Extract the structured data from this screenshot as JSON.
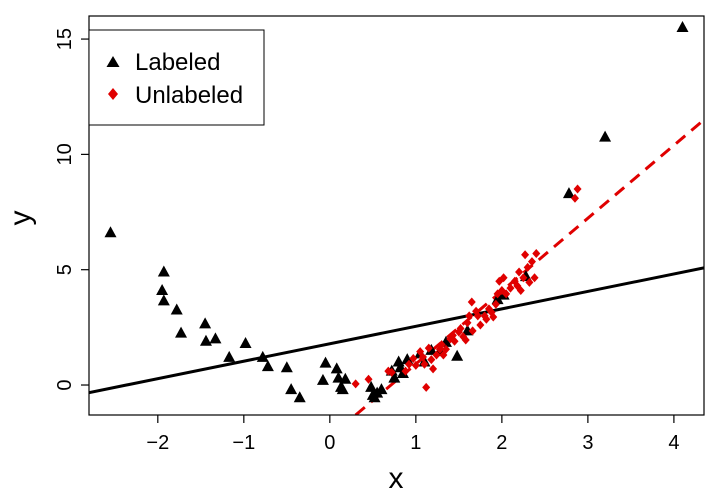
{
  "chart_data": {
    "type": "scatter",
    "title": "",
    "xlabel": "x",
    "ylabel": "y",
    "xlim": [
      -2.8,
      4.35
    ],
    "ylim": [
      -1.3,
      16.0
    ],
    "xticks": [
      -2,
      -1,
      0,
      1,
      2,
      3,
      4
    ],
    "yticks": [
      0,
      5,
      10,
      15
    ],
    "xtick_labels": [
      "−2",
      "−1",
      "0",
      "1",
      "2",
      "3",
      "4"
    ],
    "ytick_labels": [
      "0",
      "5",
      "10",
      "15"
    ],
    "grid": false,
    "legend": {
      "position": "top-left",
      "entries": [
        {
          "label": "Labeled",
          "marker": "triangle",
          "color": "#000000"
        },
        {
          "label": "Unlabeled",
          "marker": "diamond",
          "color": "#e00000"
        }
      ]
    },
    "series": [
      {
        "name": "Labeled",
        "marker": "triangle",
        "color": "#000000",
        "points": [
          [
            -2.55,
            6.6
          ],
          [
            -1.93,
            4.9
          ],
          [
            -1.95,
            4.1
          ],
          [
            -1.93,
            3.65
          ],
          [
            -1.78,
            3.25
          ],
          [
            -1.73,
            2.25
          ],
          [
            -1.45,
            2.65
          ],
          [
            -1.44,
            1.9
          ],
          [
            -1.33,
            2.0
          ],
          [
            -1.17,
            1.2
          ],
          [
            -0.98,
            1.8
          ],
          [
            -0.78,
            1.2
          ],
          [
            -0.72,
            0.8
          ],
          [
            -0.5,
            0.75
          ],
          [
            -0.45,
            -0.2
          ],
          [
            -0.35,
            -0.55
          ],
          [
            -0.08,
            0.2
          ],
          [
            -0.05,
            0.95
          ],
          [
            0.08,
            0.7
          ],
          [
            0.1,
            0.3
          ],
          [
            0.13,
            -0.1
          ],
          [
            0.15,
            -0.2
          ],
          [
            0.18,
            0.25
          ],
          [
            0.48,
            -0.1
          ],
          [
            0.5,
            -0.45
          ],
          [
            0.52,
            -0.55
          ],
          [
            0.55,
            -0.35
          ],
          [
            0.6,
            -0.2
          ],
          [
            0.72,
            0.6
          ],
          [
            0.75,
            0.3
          ],
          [
            0.8,
            1.0
          ],
          [
            0.82,
            0.75
          ],
          [
            0.85,
            0.5
          ],
          [
            0.9,
            1.1
          ],
          [
            1.05,
            1.35
          ],
          [
            1.1,
            1.0
          ],
          [
            1.18,
            1.5
          ],
          [
            1.28,
            1.45
          ],
          [
            1.35,
            1.85
          ],
          [
            1.48,
            1.25
          ],
          [
            1.6,
            2.35
          ],
          [
            1.95,
            3.7
          ],
          [
            2.02,
            3.9
          ],
          [
            2.28,
            4.7
          ],
          [
            2.78,
            8.3
          ],
          [
            3.2,
            10.75
          ],
          [
            4.1,
            15.5
          ]
        ]
      },
      {
        "name": "Unlabeled",
        "marker": "diamond",
        "color": "#e00000",
        "points": [
          [
            0.3,
            0.05
          ],
          [
            0.45,
            0.25
          ],
          [
            0.68,
            0.6
          ],
          [
            0.72,
            0.55
          ],
          [
            0.88,
            0.6
          ],
          [
            0.92,
            0.9
          ],
          [
            0.97,
            1.15
          ],
          [
            1.0,
            0.85
          ],
          [
            1.05,
            1.45
          ],
          [
            1.08,
            1.2
          ],
          [
            1.1,
            0.9
          ],
          [
            1.12,
            -0.1
          ],
          [
            1.15,
            1.6
          ],
          [
            1.18,
            1.1
          ],
          [
            1.2,
            0.7
          ],
          [
            1.24,
            1.3
          ],
          [
            1.28,
            1.55
          ],
          [
            1.3,
            1.75
          ],
          [
            1.32,
            1.3
          ],
          [
            1.35,
            1.55
          ],
          [
            1.4,
            2.0
          ],
          [
            1.43,
            2.15
          ],
          [
            1.45,
            1.9
          ],
          [
            1.5,
            2.3
          ],
          [
            1.52,
            2.45
          ],
          [
            1.55,
            2.1
          ],
          [
            1.58,
            1.95
          ],
          [
            1.6,
            2.7
          ],
          [
            1.62,
            3.0
          ],
          [
            1.65,
            3.6
          ],
          [
            1.66,
            2.35
          ],
          [
            1.7,
            3.2
          ],
          [
            1.72,
            3.0
          ],
          [
            1.75,
            2.6
          ],
          [
            1.8,
            3.0
          ],
          [
            1.82,
            2.85
          ],
          [
            1.85,
            3.3
          ],
          [
            1.88,
            3.15
          ],
          [
            1.9,
            2.95
          ],
          [
            1.93,
            3.5
          ],
          [
            1.95,
            3.95
          ],
          [
            1.97,
            4.5
          ],
          [
            2.0,
            4.1
          ],
          [
            2.02,
            4.65
          ],
          [
            2.05,
            3.95
          ],
          [
            2.1,
            4.2
          ],
          [
            2.15,
            4.5
          ],
          [
            2.18,
            4.3
          ],
          [
            2.2,
            4.9
          ],
          [
            2.22,
            4.1
          ],
          [
            2.25,
            4.65
          ],
          [
            2.27,
            5.65
          ],
          [
            2.3,
            5.1
          ],
          [
            2.32,
            4.45
          ],
          [
            2.35,
            5.35
          ],
          [
            2.38,
            4.65
          ],
          [
            2.4,
            5.7
          ],
          [
            2.85,
            8.1
          ],
          [
            2.88,
            8.5
          ]
        ]
      }
    ],
    "lines": [
      {
        "name": "Labeled fit",
        "style": "solid",
        "color": "#000000",
        "from": [
          -2.8,
          -0.33
        ],
        "to": [
          4.35,
          5.08
        ]
      },
      {
        "name": "Unlabeled fit",
        "style": "dashed",
        "color": "#e00000",
        "from": [
          0.3,
          -1.3
        ],
        "to": [
          4.35,
          11.5
        ]
      }
    ]
  }
}
